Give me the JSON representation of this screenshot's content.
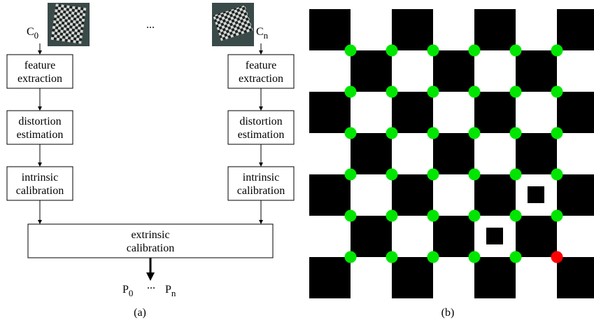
{
  "panel_a": {
    "camera_first": {
      "letter": "C",
      "subscript": "0"
    },
    "camera_last": {
      "letter": "C",
      "subscript": "n"
    },
    "ellipsis": "...",
    "left_chain": [
      [
        "feature",
        "extraction"
      ],
      [
        "distortion",
        "estimation"
      ],
      [
        "intrinsic",
        "calibration"
      ]
    ],
    "right_chain": [
      [
        "feature",
        "extraction"
      ],
      [
        "distortion",
        "estimation"
      ],
      [
        "intrinsic",
        "calibration"
      ]
    ],
    "extrinsic": [
      "extrinsic",
      "calibration"
    ],
    "output_first": {
      "letter": "P",
      "subscript": "0"
    },
    "output_ellipsis": "...",
    "output_last": {
      "letter": "P",
      "subscript": "n"
    },
    "caption": "(a)"
  },
  "panel_b": {
    "caption": "(b)"
  }
}
